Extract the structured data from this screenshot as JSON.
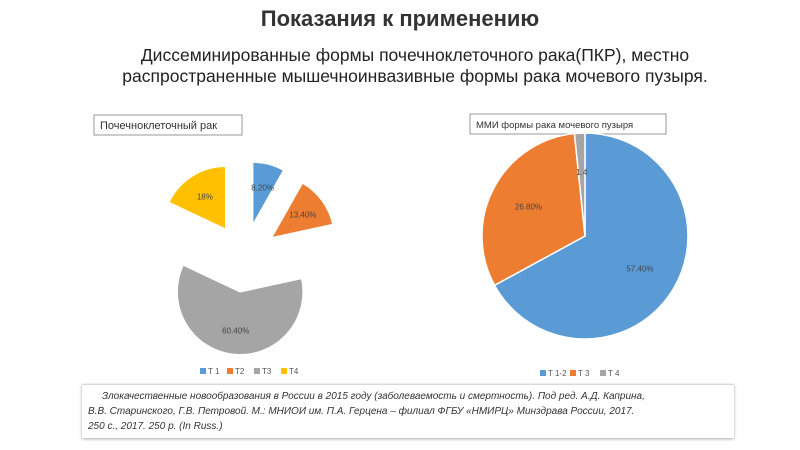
{
  "slide": {
    "title": "Показания к применению",
    "subtitle_line1": "Диссеминированные формы почечноклеточного рака(ПКР), местно",
    "subtitle_line2": "распространенные мышечноинвазивные формы рака мочевого пузыря.",
    "citation_line1": "Злокачественные новообразования в России в 2015 году (заболеваемость и смертность). Под ред. А.Д. Каприна,",
    "citation_line2": "В.В. Старинского, Г.В. Петровой. М.: МНИОИ им. П.А. Герцена – филиал ФГБУ «НМИРЦ» Минздрава России, 2017.",
    "citation_line3": "250 с., 2017. 250 p. (In Russ.)"
  },
  "chart_data": [
    {
      "type": "pie",
      "title": "Почечноклеточный рак",
      "exploded": true,
      "categories": [
        "T 1",
        "T2",
        "T3",
        "T4"
      ],
      "values": [
        8.2,
        13.4,
        60.4,
        18
      ],
      "data_labels": [
        "8.20%",
        "13.40%",
        "60.40%",
        "18%"
      ],
      "colors": [
        "#5b9bd5",
        "#ed7d31",
        "#a5a5a5",
        "#ffc000"
      ],
      "legend_position": "bottom"
    },
    {
      "type": "pie",
      "title": "ММИ формы рака мочевого пузыря",
      "exploded": false,
      "categories": [
        "T 1-2",
        "T 3",
        "T 4"
      ],
      "values": [
        57.4,
        26.8,
        1.4
      ],
      "data_labels": [
        "57.40%",
        "26.80%",
        "1.4"
      ],
      "colors": [
        "#5b9bd5",
        "#ed7d31",
        "#a5a5a5"
      ],
      "legend_position": "bottom"
    }
  ]
}
